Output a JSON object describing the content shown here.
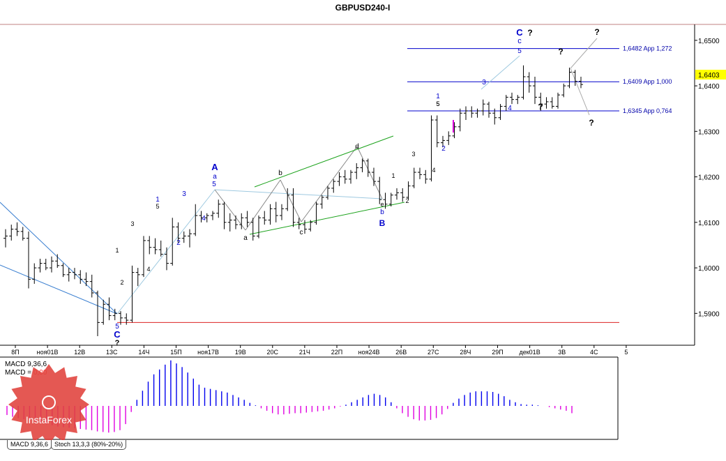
{
  "window_title": "GBPUSD240-I",
  "current_price": "1,6403",
  "chart_data": [
    {
      "type": "ohlc",
      "title": "GBPUSD240-I",
      "price_axis": {
        "range": [
          1.583,
          1.6535
        ],
        "ticks": [
          "1,6500",
          "1,6400",
          "1,6300",
          "1,6200",
          "1,6100",
          "1,6000",
          "1,5900"
        ]
      },
      "time_axis": {
        "labels": [
          "8П",
          "ноя01В",
          "12В",
          "13С",
          "14Ч",
          "15П",
          "ноя17В",
          "19В",
          "20С",
          "21Ч",
          "22П",
          "ноя24В",
          "26В",
          "27С",
          "28Ч",
          "29П",
          "дек01В",
          "3В",
          "4С",
          "5"
        ]
      },
      "bars": [
        {
          "o": 1.6065,
          "h": 1.6085,
          "l": 1.6045,
          "c": 1.607
        },
        {
          "o": 1.607,
          "h": 1.6095,
          "l": 1.606,
          "c": 1.6085
        },
        {
          "o": 1.6085,
          "h": 1.61,
          "l": 1.607,
          "c": 1.608
        },
        {
          "o": 1.608,
          "h": 1.609,
          "l": 1.606,
          "c": 1.6065
        },
        {
          "o": 1.6065,
          "h": 1.608,
          "l": 1.5955,
          "c": 1.5975
        },
        {
          "o": 1.5975,
          "h": 1.601,
          "l": 1.5965,
          "c": 1.6
        },
        {
          "o": 1.6,
          "h": 1.602,
          "l": 1.599,
          "c": 1.601
        },
        {
          "o": 1.601,
          "h": 1.602,
          "l": 1.5995,
          "c": 1.6
        },
        {
          "o": 1.6,
          "h": 1.6025,
          "l": 1.599,
          "c": 1.6015
        },
        {
          "o": 1.6015,
          "h": 1.603,
          "l": 1.6,
          "c": 1.6005
        },
        {
          "o": 1.6005,
          "h": 1.601,
          "l": 1.598,
          "c": 1.5985
        },
        {
          "o": 1.5985,
          "h": 1.6,
          "l": 1.597,
          "c": 1.599
        },
        {
          "o": 1.599,
          "h": 1.6,
          "l": 1.5975,
          "c": 1.5985
        },
        {
          "o": 1.5985,
          "h": 1.5995,
          "l": 1.5965,
          "c": 1.5975
        },
        {
          "o": 1.5975,
          "h": 1.599,
          "l": 1.596,
          "c": 1.597
        },
        {
          "o": 1.597,
          "h": 1.5985,
          "l": 1.5935,
          "c": 1.5945
        },
        {
          "o": 1.5945,
          "h": 1.595,
          "l": 1.585,
          "c": 1.588
        },
        {
          "o": 1.588,
          "h": 1.593,
          "l": 1.5875,
          "c": 1.592
        },
        {
          "o": 1.592,
          "h": 1.5935,
          "l": 1.5885,
          "c": 1.5895
        },
        {
          "o": 1.5895,
          "h": 1.591,
          "l": 1.5885,
          "c": 1.59
        },
        {
          "o": 1.59,
          "h": 1.5905,
          "l": 1.5875,
          "c": 1.589
        },
        {
          "o": 1.589,
          "h": 1.59,
          "l": 1.5875,
          "c": 1.5885
        },
        {
          "o": 1.5885,
          "h": 1.6005,
          "l": 1.588,
          "c": 1.599
        },
        {
          "o": 1.599,
          "h": 1.6,
          "l": 1.596,
          "c": 1.5985
        },
        {
          "o": 1.5985,
          "h": 1.607,
          "l": 1.598,
          "c": 1.606
        },
        {
          "o": 1.606,
          "h": 1.607,
          "l": 1.603,
          "c": 1.6045
        },
        {
          "o": 1.6045,
          "h": 1.6065,
          "l": 1.603,
          "c": 1.604
        },
        {
          "o": 1.604,
          "h": 1.606,
          "l": 1.6025,
          "c": 1.603
        },
        {
          "o": 1.603,
          "h": 1.6045,
          "l": 1.5995,
          "c": 1.601
        },
        {
          "o": 1.601,
          "h": 1.611,
          "l": 1.6005,
          "c": 1.609
        },
        {
          "o": 1.609,
          "h": 1.61,
          "l": 1.6055,
          "c": 1.6065
        },
        {
          "o": 1.6065,
          "h": 1.608,
          "l": 1.6055,
          "c": 1.607
        },
        {
          "o": 1.607,
          "h": 1.6085,
          "l": 1.6045,
          "c": 1.6075
        },
        {
          "o": 1.6075,
          "h": 1.614,
          "l": 1.607,
          "c": 1.6115
        },
        {
          "o": 1.6115,
          "h": 1.6125,
          "l": 1.61,
          "c": 1.611
        },
        {
          "o": 1.611,
          "h": 1.612,
          "l": 1.61,
          "c": 1.6115
        },
        {
          "o": 1.6115,
          "h": 1.6125,
          "l": 1.6105,
          "c": 1.612
        },
        {
          "o": 1.612,
          "h": 1.615,
          "l": 1.611,
          "c": 1.614
        },
        {
          "o": 1.614,
          "h": 1.6145,
          "l": 1.6085,
          "c": 1.61
        },
        {
          "o": 1.61,
          "h": 1.612,
          "l": 1.608,
          "c": 1.6105
        },
        {
          "o": 1.6105,
          "h": 1.6115,
          "l": 1.6085,
          "c": 1.6095
        },
        {
          "o": 1.6095,
          "h": 1.612,
          "l": 1.6085,
          "c": 1.611
        },
        {
          "o": 1.611,
          "h": 1.6125,
          "l": 1.609,
          "c": 1.61
        },
        {
          "o": 1.61,
          "h": 1.611,
          "l": 1.606,
          "c": 1.607
        },
        {
          "o": 1.607,
          "h": 1.6115,
          "l": 1.6065,
          "c": 1.611
        },
        {
          "o": 1.611,
          "h": 1.6125,
          "l": 1.6095,
          "c": 1.6105
        },
        {
          "o": 1.6105,
          "h": 1.614,
          "l": 1.6095,
          "c": 1.613
        },
        {
          "o": 1.613,
          "h": 1.6145,
          "l": 1.61,
          "c": 1.6115
        },
        {
          "o": 1.6115,
          "h": 1.614,
          "l": 1.6105,
          "c": 1.613
        },
        {
          "o": 1.613,
          "h": 1.6175,
          "l": 1.6125,
          "c": 1.616
        },
        {
          "o": 1.616,
          "h": 1.6175,
          "l": 1.609,
          "c": 1.61
        },
        {
          "o": 1.61,
          "h": 1.611,
          "l": 1.6085,
          "c": 1.6095
        },
        {
          "o": 1.6095,
          "h": 1.6105,
          "l": 1.6075,
          "c": 1.6085
        },
        {
          "o": 1.6085,
          "h": 1.6105,
          "l": 1.608,
          "c": 1.61
        },
        {
          "o": 1.61,
          "h": 1.6145,
          "l": 1.6095,
          "c": 1.614
        },
        {
          "o": 1.614,
          "h": 1.616,
          "l": 1.613,
          "c": 1.6155
        },
        {
          "o": 1.6155,
          "h": 1.618,
          "l": 1.615,
          "c": 1.6175
        },
        {
          "o": 1.6175,
          "h": 1.6195,
          "l": 1.6165,
          "c": 1.619
        },
        {
          "o": 1.619,
          "h": 1.621,
          "l": 1.618,
          "c": 1.62
        },
        {
          "o": 1.62,
          "h": 1.6215,
          "l": 1.6185,
          "c": 1.6195
        },
        {
          "o": 1.6195,
          "h": 1.6215,
          "l": 1.6185,
          "c": 1.621
        },
        {
          "o": 1.621,
          "h": 1.623,
          "l": 1.6195,
          "c": 1.622
        },
        {
          "o": 1.622,
          "h": 1.624,
          "l": 1.621,
          "c": 1.6235
        },
        {
          "o": 1.6235,
          "h": 1.624,
          "l": 1.62,
          "c": 1.621
        },
        {
          "o": 1.621,
          "h": 1.622,
          "l": 1.618,
          "c": 1.619
        },
        {
          "o": 1.619,
          "h": 1.62,
          "l": 1.614,
          "c": 1.615
        },
        {
          "o": 1.615,
          "h": 1.6165,
          "l": 1.613,
          "c": 1.614
        },
        {
          "o": 1.614,
          "h": 1.6165,
          "l": 1.6135,
          "c": 1.616
        },
        {
          "o": 1.616,
          "h": 1.6175,
          "l": 1.615,
          "c": 1.6165
        },
        {
          "o": 1.6165,
          "h": 1.6175,
          "l": 1.6145,
          "c": 1.6155
        },
        {
          "o": 1.6155,
          "h": 1.619,
          "l": 1.615,
          "c": 1.618
        },
        {
          "o": 1.618,
          "h": 1.622,
          "l": 1.6175,
          "c": 1.621
        },
        {
          "o": 1.621,
          "h": 1.622,
          "l": 1.6195,
          "c": 1.6205
        },
        {
          "o": 1.6205,
          "h": 1.6215,
          "l": 1.6185,
          "c": 1.6195
        },
        {
          "o": 1.6195,
          "h": 1.6335,
          "l": 1.619,
          "c": 1.6325
        },
        {
          "o": 1.6325,
          "h": 1.6335,
          "l": 1.6265,
          "c": 1.6275
        },
        {
          "o": 1.6275,
          "h": 1.629,
          "l": 1.6265,
          "c": 1.628
        },
        {
          "o": 1.628,
          "h": 1.63,
          "l": 1.627,
          "c": 1.629
        },
        {
          "o": 1.629,
          "h": 1.632,
          "l": 1.6285,
          "c": 1.631
        },
        {
          "o": 1.631,
          "h": 1.635,
          "l": 1.63,
          "c": 1.634
        },
        {
          "o": 1.634,
          "h": 1.6355,
          "l": 1.6325,
          "c": 1.6345
        },
        {
          "o": 1.6345,
          "h": 1.6355,
          "l": 1.633,
          "c": 1.634
        },
        {
          "o": 1.634,
          "h": 1.635,
          "l": 1.633,
          "c": 1.6345
        },
        {
          "o": 1.6345,
          "h": 1.637,
          "l": 1.6335,
          "c": 1.636
        },
        {
          "o": 1.636,
          "h": 1.6365,
          "l": 1.633,
          "c": 1.634
        },
        {
          "o": 1.634,
          "h": 1.635,
          "l": 1.6315,
          "c": 1.633
        },
        {
          "o": 1.633,
          "h": 1.636,
          "l": 1.6325,
          "c": 1.6355
        },
        {
          "o": 1.6355,
          "h": 1.638,
          "l": 1.6345,
          "c": 1.6375
        },
        {
          "o": 1.6375,
          "h": 1.6385,
          "l": 1.636,
          "c": 1.637
        },
        {
          "o": 1.637,
          "h": 1.638,
          "l": 1.636,
          "c": 1.6375
        },
        {
          "o": 1.6375,
          "h": 1.6445,
          "l": 1.637,
          "c": 1.642
        },
        {
          "o": 1.642,
          "h": 1.643,
          "l": 1.6385,
          "c": 1.64
        },
        {
          "o": 1.64,
          "h": 1.642,
          "l": 1.636,
          "c": 1.6375
        },
        {
          "o": 1.6375,
          "h": 1.6385,
          "l": 1.6345,
          "c": 1.636
        },
        {
          "o": 1.636,
          "h": 1.6375,
          "l": 1.635,
          "c": 1.6365
        },
        {
          "o": 1.6365,
          "h": 1.6375,
          "l": 1.635,
          "c": 1.6355
        },
        {
          "o": 1.6355,
          "h": 1.6385,
          "l": 1.635,
          "c": 1.638
        },
        {
          "o": 1.638,
          "h": 1.6405,
          "l": 1.6375,
          "c": 1.64
        },
        {
          "o": 1.64,
          "h": 1.644,
          "l": 1.6395,
          "c": 1.643
        },
        {
          "o": 1.643,
          "h": 1.6435,
          "l": 1.64,
          "c": 1.641
        },
        {
          "o": 1.641,
          "h": 1.642,
          "l": 1.6395,
          "c": 1.6403
        }
      ],
      "horizontal_levels": [
        {
          "price": 1.6482,
          "label": "1,6482 App 1,272",
          "color": "#0000cc"
        },
        {
          "price": 1.6409,
          "label": "1,6409 App 1,000",
          "color": "#0000cc"
        },
        {
          "price": 1.6345,
          "label": "1,6345 App 0,764",
          "color": "#0000cc"
        },
        {
          "price": 1.588,
          "label": "",
          "color": "#dd2222"
        }
      ],
      "wave_labels": [
        "A",
        "a",
        "5",
        "B",
        "b",
        "e",
        "C",
        "c",
        "5",
        "?",
        "1",
        "2",
        "3",
        "4",
        "5",
        "d",
        "a",
        "b",
        "c",
        "1",
        "2",
        "3",
        "4",
        "5",
        "?",
        "?",
        "?",
        "?",
        "3",
        "1",
        "2",
        "4",
        "1",
        "2",
        "3",
        "4",
        "5",
        "C",
        "?",
        "5"
      ]
    },
    {
      "type": "histogram",
      "title": "MACD 9,36,6",
      "legend_main": "MACD 9,36,6",
      "legend_value_label": "MACD = ",
      "legend_value": "0,00",
      "values": [
        -0.0015,
        -0.0018,
        -0.002,
        -0.0022,
        -0.0024,
        -0.0026,
        -0.0028,
        -0.003,
        -0.0032,
        -0.0034,
        -0.0035,
        -0.0036,
        -0.0037,
        -0.0038,
        -0.0039,
        -0.004,
        -0.0042,
        -0.0043,
        -0.0044,
        -0.0043,
        -0.004,
        -0.003,
        -0.001,
        0.001,
        0.0025,
        0.004,
        0.0052,
        0.006,
        0.0068,
        0.0075,
        0.007,
        0.0064,
        0.0055,
        0.0045,
        0.0035,
        0.003,
        0.0028,
        0.0026,
        0.0024,
        0.0022,
        0.0018,
        0.0014,
        0.001,
        0.0005,
        0.0001,
        -0.0004,
        -0.0008,
        -0.0012,
        -0.0014,
        -0.0014,
        -0.0013,
        -0.0012,
        -0.0012,
        -0.0011,
        -0.001,
        -0.0009,
        -0.0008,
        -0.0006,
        -0.0004,
        -0.0001,
        0.0002,
        0.0006,
        0.001,
        0.0014,
        0.0018,
        0.002,
        0.0018,
        0.0014,
        0.0006,
        -0.0004,
        -0.0012,
        -0.0018,
        -0.0022,
        -0.0024,
        -0.0024,
        -0.0023,
        -0.002,
        -0.0014,
        -0.0005,
        0.0005,
        0.0012,
        0.0018,
        0.0022,
        0.0024,
        0.0024,
        0.0024,
        0.0023,
        0.002,
        0.0016,
        0.001,
        0.0006,
        0.0003,
        0.0002,
        0.0002,
        0.0001,
        0.0,
        -0.0002,
        -0.0004,
        -0.0006,
        -0.0008,
        -0.0012
      ]
    }
  ],
  "tabs": [
    "MACD 9,36,6",
    "Stoch 13,3,3 (80%-20%)"
  ],
  "logo": {
    "text": "InstaForex",
    "color": "#e0413b"
  }
}
